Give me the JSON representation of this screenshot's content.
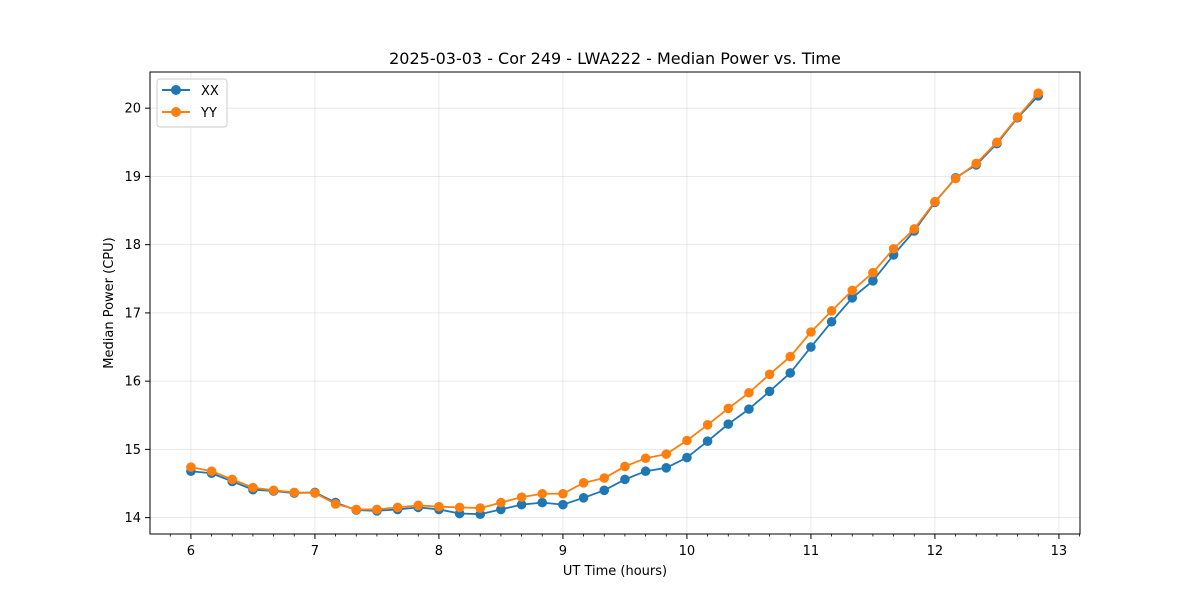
{
  "chart_data": {
    "type": "line",
    "title": "2025-03-03 - Cor 249 - LWA222 - Median Power vs. Time",
    "xlabel": "UT Time (hours)",
    "ylabel": "Median Power (CPU)",
    "xlim": [
      5.67,
      13.17
    ],
    "ylim": [
      13.76,
      20.53
    ],
    "xticks": [
      6,
      7,
      8,
      9,
      10,
      11,
      12,
      13
    ],
    "xtick_labels": [
      "6",
      "7",
      "8",
      "9",
      "10",
      "11",
      "12",
      "13"
    ],
    "yticks": [
      14,
      15,
      16,
      17,
      18,
      19,
      20
    ],
    "ytick_labels": [
      "14",
      "15",
      "16",
      "17",
      "18",
      "19",
      "20"
    ],
    "grid": true,
    "legend": "top-left",
    "x": [
      6.0,
      6.1667,
      6.3333,
      6.5,
      6.6667,
      6.8333,
      7.0,
      7.1667,
      7.3333,
      7.5,
      7.6667,
      7.8333,
      8.0,
      8.1667,
      8.3333,
      8.5,
      8.6667,
      8.8333,
      9.0,
      9.1667,
      9.3333,
      9.5,
      9.6667,
      9.8333,
      10.0,
      10.1667,
      10.3333,
      10.5,
      10.6667,
      10.8333,
      11.0,
      11.1667,
      11.3333,
      11.5,
      11.6667,
      11.8333,
      12.0,
      12.1667,
      12.3333,
      12.5,
      12.6667,
      12.8333
    ],
    "series": [
      {
        "name": "XX",
        "color": "#1f77b4",
        "values": [
          14.68,
          14.65,
          14.53,
          14.41,
          14.39,
          14.36,
          14.37,
          14.22,
          14.11,
          14.1,
          14.12,
          14.15,
          14.12,
          14.06,
          14.05,
          14.12,
          14.19,
          14.22,
          14.19,
          14.29,
          14.4,
          14.56,
          14.68,
          14.73,
          14.88,
          15.12,
          15.37,
          15.59,
          15.85,
          16.12,
          16.5,
          16.87,
          17.22,
          17.47,
          17.85,
          18.2,
          18.62,
          18.98,
          19.17,
          19.48,
          19.86,
          20.18
        ]
      },
      {
        "name": "YY",
        "color": "#ff7f0e",
        "values": [
          14.74,
          14.68,
          14.56,
          14.44,
          14.4,
          14.37,
          14.36,
          14.2,
          14.12,
          14.12,
          14.15,
          14.18,
          14.16,
          14.15,
          14.14,
          14.22,
          14.3,
          14.35,
          14.35,
          14.51,
          14.58,
          14.75,
          14.87,
          14.93,
          15.13,
          15.36,
          15.6,
          15.83,
          16.1,
          16.36,
          16.72,
          17.03,
          17.33,
          17.59,
          17.94,
          18.23,
          18.63,
          18.97,
          19.19,
          19.5,
          19.87,
          20.22
        ]
      }
    ]
  }
}
